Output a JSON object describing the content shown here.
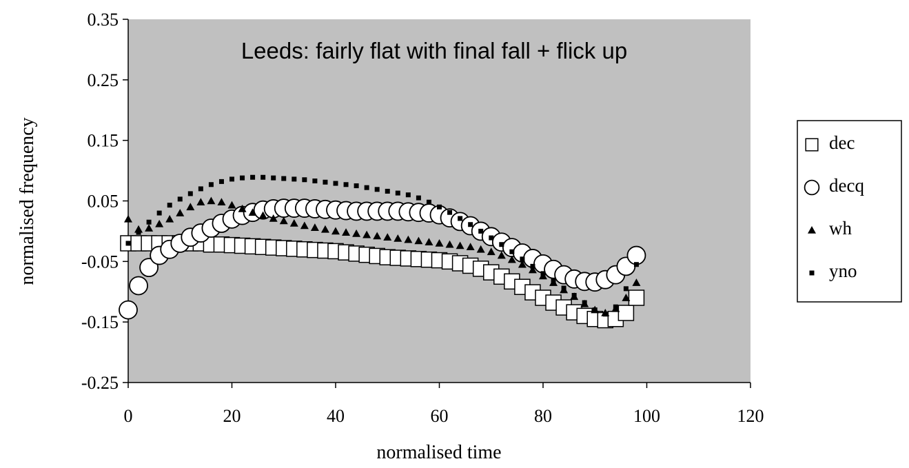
{
  "chart_data": {
    "type": "scatter",
    "annotation": "Leeds: fairly flat with final fall + flick up",
    "x_label": "normalised time",
    "y_label": "normalised frequency",
    "xlim": [
      0,
      120
    ],
    "xticks": [
      0,
      20,
      40,
      60,
      80,
      100,
      120
    ],
    "ylim": [
      -0.25,
      0.35
    ],
    "yticks": [
      -0.25,
      -0.15,
      -0.05,
      0.05,
      0.15,
      0.25,
      0.35
    ],
    "plot_background": "#c0c0c0",
    "x": [
      0,
      2,
      4,
      6,
      8,
      10,
      12,
      14,
      16,
      18,
      20,
      22,
      24,
      26,
      28,
      30,
      32,
      34,
      36,
      38,
      40,
      42,
      44,
      46,
      48,
      50,
      52,
      54,
      56,
      58,
      60,
      62,
      64,
      66,
      68,
      70,
      72,
      74,
      76,
      78,
      80,
      82,
      84,
      86,
      88,
      90,
      92,
      94,
      96,
      98
    ],
    "series": [
      {
        "name": "dec",
        "marker": "open-square",
        "color": "#000000",
        "values": [
          -0.02,
          -0.02,
          -0.02,
          -0.02,
          -0.02,
          -0.02,
          -0.02,
          -0.02,
          -0.022,
          -0.022,
          -0.023,
          -0.024,
          -0.025,
          -0.026,
          -0.027,
          -0.028,
          -0.029,
          -0.03,
          -0.031,
          -0.032,
          -0.033,
          -0.035,
          -0.037,
          -0.039,
          -0.041,
          -0.043,
          -0.044,
          -0.045,
          -0.046,
          -0.047,
          -0.048,
          -0.05,
          -0.053,
          -0.057,
          -0.062,
          -0.068,
          -0.075,
          -0.083,
          -0.092,
          -0.101,
          -0.11,
          -0.118,
          -0.126,
          -0.134,
          -0.14,
          -0.145,
          -0.147,
          -0.145,
          -0.135,
          -0.11
        ]
      },
      {
        "name": "decq",
        "marker": "open-circle",
        "color": "#000000",
        "values": [
          -0.13,
          -0.09,
          -0.06,
          -0.04,
          -0.03,
          -0.02,
          -0.01,
          -0.003,
          0.005,
          0.013,
          0.02,
          0.026,
          0.031,
          0.035,
          0.037,
          0.038,
          0.038,
          0.038,
          0.037,
          0.036,
          0.035,
          0.034,
          0.033,
          0.033,
          0.033,
          0.033,
          0.033,
          0.032,
          0.031,
          0.03,
          0.027,
          0.022,
          0.016,
          0.009,
          0.0,
          -0.009,
          -0.018,
          -0.027,
          -0.036,
          -0.045,
          -0.054,
          -0.063,
          -0.072,
          -0.079,
          -0.083,
          -0.084,
          -0.08,
          -0.072,
          -0.058,
          -0.04
        ]
      },
      {
        "name": "wh",
        "marker": "triangle",
        "color": "#000000",
        "values": [
          0.02,
          0.003,
          0.005,
          0.012,
          0.02,
          0.03,
          0.04,
          0.048,
          0.05,
          0.048,
          0.043,
          0.037,
          0.031,
          0.026,
          0.021,
          0.017,
          0.013,
          0.009,
          0.006,
          0.003,
          0.0,
          -0.002,
          -0.004,
          -0.006,
          -0.008,
          -0.01,
          -0.012,
          -0.014,
          -0.016,
          -0.018,
          -0.02,
          -0.022,
          -0.024,
          -0.026,
          -0.03,
          -0.034,
          -0.04,
          -0.047,
          -0.055,
          -0.064,
          -0.074,
          -0.085,
          -0.097,
          -0.108,
          -0.12,
          -0.13,
          -0.135,
          -0.128,
          -0.11,
          -0.085
        ]
      },
      {
        "name": "yno",
        "marker": "small-square",
        "color": "#000000",
        "values": [
          -0.02,
          -0.002,
          0.015,
          0.03,
          0.043,
          0.053,
          0.062,
          0.07,
          0.077,
          0.082,
          0.086,
          0.088,
          0.089,
          0.089,
          0.088,
          0.087,
          0.086,
          0.085,
          0.083,
          0.081,
          0.079,
          0.077,
          0.075,
          0.072,
          0.069,
          0.066,
          0.063,
          0.06,
          0.055,
          0.048,
          0.04,
          0.031,
          0.021,
          0.011,
          0.0,
          -0.011,
          -0.022,
          -0.034,
          -0.046,
          -0.058,
          -0.07,
          -0.082,
          -0.094,
          -0.106,
          -0.118,
          -0.13,
          -0.137,
          -0.125,
          -0.095,
          -0.055
        ]
      }
    ]
  }
}
